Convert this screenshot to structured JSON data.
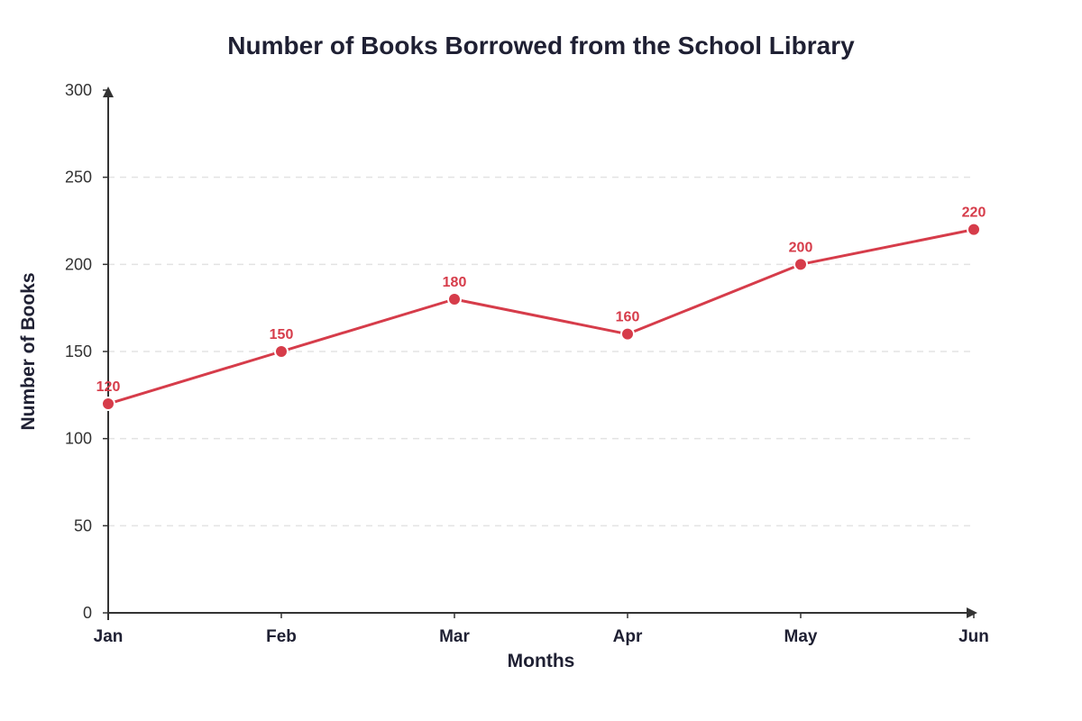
{
  "chart_data": {
    "type": "line",
    "title": "Number of Books Borrowed from the School Library",
    "xlabel": "Months",
    "ylabel": "Number of Books",
    "categories": [
      "Jan",
      "Feb",
      "Mar",
      "Apr",
      "May",
      "Jun"
    ],
    "series": [
      {
        "values": [
          120,
          150,
          180,
          160,
          200,
          220
        ],
        "color": "#d63c4a"
      }
    ],
    "ylim": [
      0,
      300
    ],
    "yticks": [
      "0",
      "50",
      "100",
      "150",
      "200",
      "250",
      "300"
    ],
    "grid": true,
    "data_labels": [
      "120",
      "150",
      "180",
      "160",
      "200",
      "220"
    ]
  }
}
